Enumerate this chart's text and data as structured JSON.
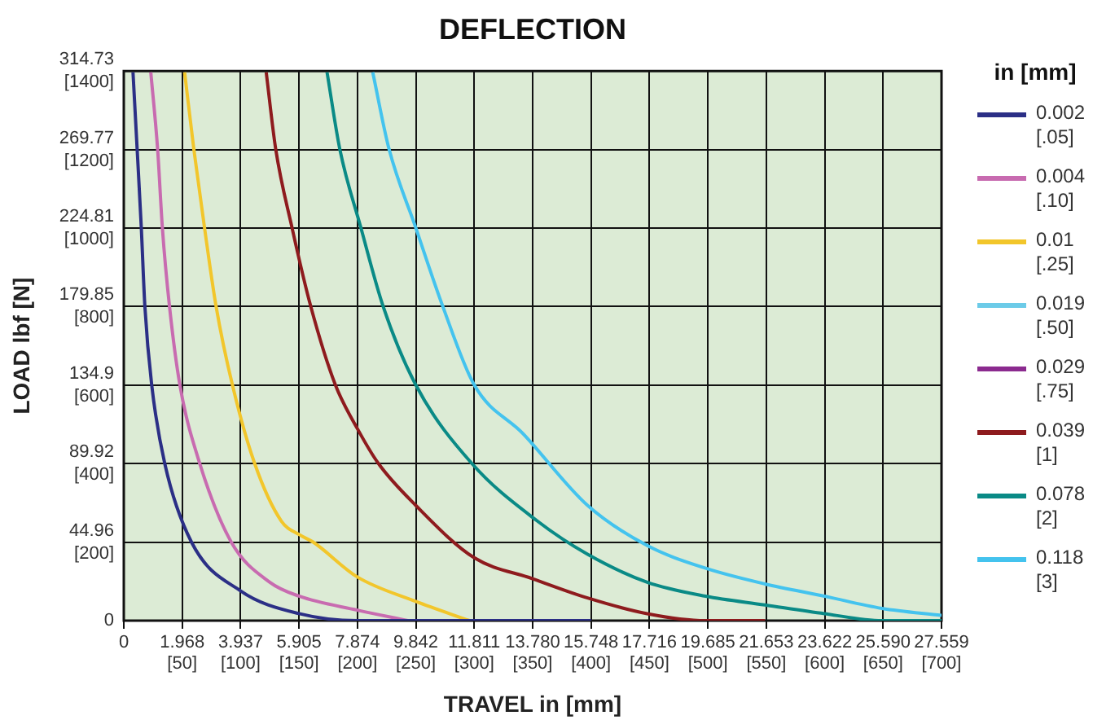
{
  "chart_data": {
    "type": "line",
    "title": "DEFLECTION",
    "xlabel": "TRAVEL in [mm]",
    "ylabel": "LOAD lbf [N]",
    "legend_title": "in [mm]",
    "legend": "right",
    "grid": true,
    "marker": "none",
    "line_style": "solid",
    "xlim": [
      0,
      27.559
    ],
    "ylim": [
      0,
      314.73
    ],
    "xticks": [
      0,
      1.968,
      3.937,
      5.905,
      7.874,
      9.842,
      11.811,
      {
        "value": 13.78,
        "label": "13.780"
      },
      15.748,
      17.716,
      19.685,
      21.653,
      23.622,
      {
        "value": 25.59,
        "label": "25.590"
      },
      27.559
    ],
    "x2lim": [
      0,
      700
    ],
    "x2ticks": [
      {
        "value": 50,
        "label": "[50]"
      },
      {
        "value": 100,
        "label": "[100]"
      },
      {
        "value": 150,
        "label": "[150]"
      },
      {
        "value": 200,
        "label": "[200]"
      },
      {
        "value": 250,
        "label": "[250]"
      },
      {
        "value": 300,
        "label": "[300]"
      },
      {
        "value": 350,
        "label": "[350]"
      },
      {
        "value": 400,
        "label": "[400]"
      },
      {
        "value": 450,
        "label": "[450]"
      },
      {
        "value": 500,
        "label": "[500]"
      },
      {
        "value": 550,
        "label": "[550]"
      },
      {
        "value": 600,
        "label": "[600]"
      },
      {
        "value": 650,
        "label": "[650]"
      },
      {
        "value": 700,
        "label": "[700]"
      }
    ],
    "yticks": [
      0,
      44.96,
      89.92,
      134.9,
      179.85,
      224.81,
      269.77,
      314.73
    ],
    "y2lim": [
      0,
      1400
    ],
    "y2ticks": [
      {
        "value": 200,
        "label": "[200]"
      },
      {
        "value": 400,
        "label": "[400]"
      },
      {
        "value": 600,
        "label": "[600]"
      },
      {
        "value": 800,
        "label": "[800]"
      },
      {
        "value": 1000,
        "label": "[1000]"
      },
      {
        "value": 1200,
        "label": "[1200]"
      },
      {
        "value": 1400,
        "label": "[1400]"
      }
    ],
    "series": [
      {
        "name": "0.002\n[.05]",
        "color": "#2b2f86",
        "x": [
          0.31,
          0.45,
          0.59,
          0.71,
          0.94,
          1.38,
          2.28,
          3.94,
          5.91,
          7.87,
          15.75
        ],
        "values": [
          314,
          270,
          225,
          180,
          135,
          90,
          45,
          17,
          4,
          0,
          0
        ]
      },
      {
        "name": "0.004\n[.10]",
        "color": "#c86bb0",
        "x": [
          0.91,
          1.14,
          1.3,
          1.54,
          1.89,
          2.56,
          3.62,
          4.92,
          5.91,
          7.87,
          9.57
        ],
        "values": [
          314,
          270,
          225,
          180,
          135,
          90,
          45,
          22,
          14,
          6,
          0
        ]
      },
      {
        "name": "0.01\n[.25]",
        "color": "#f2c62b",
        "x": [
          2.05,
          2.36,
          2.72,
          3.11,
          3.66,
          4.41,
          5.31,
          5.94,
          6.38,
          7.87,
          9.84,
          11.65
        ],
        "values": [
          314,
          270,
          225,
          180,
          135,
          90,
          57,
          49,
          45,
          25,
          11,
          0
        ]
      },
      {
        "name": "0.019\n[.50]",
        "color": "#6ccbe8"
      },
      {
        "name": "0.029\n[.75]",
        "color": "#8b2a8f"
      },
      {
        "name": "0.039\n[1]",
        "color": "#8e1b1e",
        "x": [
          4.8,
          5.12,
          5.67,
          6.3,
          7.13,
          7.87,
          8.58,
          9.84,
          11.81,
          13.78,
          15.63,
          17.64,
          19.61,
          21.61
        ],
        "values": [
          314,
          270,
          225,
          180,
          135,
          110,
          90,
          66,
          36,
          24,
          13,
          4,
          0,
          0
        ]
      },
      {
        "name": "0.078\n[2]",
        "color": "#0a8a86",
        "x": [
          6.85,
          7.28,
          7.99,
          8.74,
          9.84,
          11.73,
          13.94,
          15.63,
          17.64,
          19.61,
          21.61,
          23.62,
          25.55,
          27.559
        ],
        "values": [
          314,
          270,
          225,
          180,
          135,
          90,
          57,
          38,
          22,
          14,
          9,
          4,
          0,
          0
        ]
      },
      {
        "name": "0.118\n[3]",
        "color": "#44c3ee",
        "x": [
          8.39,
          8.94,
          9.84,
          10.75,
          11.81,
          13.46,
          15.63,
          17.64,
          19.61,
          21.61,
          23.62,
          25.55,
          27.559
        ],
        "values": [
          314,
          270,
          225,
          180,
          135,
          107,
          66,
          43,
          30,
          21,
          14,
          7,
          3
        ]
      }
    ]
  }
}
